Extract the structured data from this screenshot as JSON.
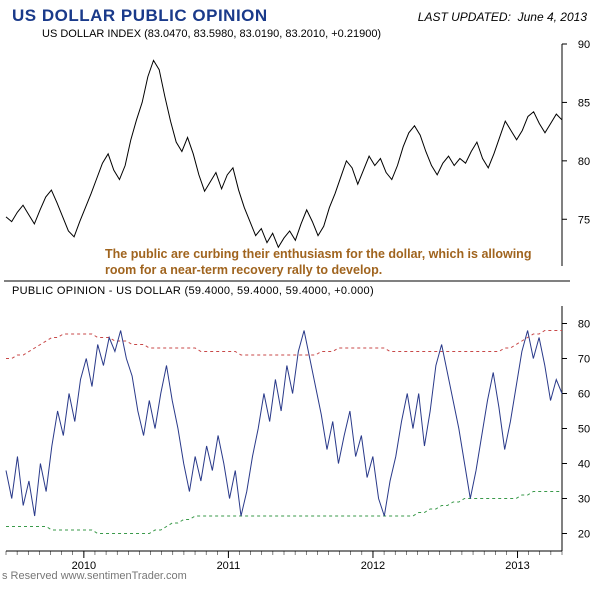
{
  "header": {
    "title": "US DOLLAR PUBLIC OPINION",
    "last_updated_label": "LAST UPDATED:",
    "last_updated_date": "June 4, 2013"
  },
  "top_chart": {
    "subtitle": "US DOLLAR INDEX (83.0470, 83.5980, 83.0190, 83.2010, +0.21900)",
    "ylim": [
      71,
      90
    ],
    "yticks": [
      75,
      80,
      85,
      90
    ],
    "line_color": "#000000",
    "line_width": 1,
    "background": "#ffffff",
    "series": [
      75.2,
      74.8,
      75.6,
      76.2,
      75.4,
      74.6,
      75.8,
      76.9,
      77.5,
      76.4,
      75.2,
      74.0,
      73.5,
      74.8,
      76.0,
      77.2,
      78.5,
      79.8,
      80.6,
      79.2,
      78.4,
      79.6,
      81.8,
      83.5,
      85.0,
      87.2,
      88.6,
      87.8,
      85.5,
      83.4,
      81.6,
      80.8,
      82.0,
      80.6,
      78.8,
      77.4,
      78.2,
      79.0,
      77.6,
      78.8,
      79.4,
      77.5,
      76.0,
      74.8,
      73.6,
      74.2,
      73.0,
      73.8,
      72.6,
      73.4,
      74.0,
      73.2,
      74.6,
      75.8,
      74.8,
      73.6,
      74.4,
      76.0,
      77.2,
      78.6,
      80.0,
      79.4,
      78.0,
      79.2,
      80.4,
      79.6,
      80.2,
      79.0,
      78.4,
      79.6,
      81.2,
      82.4,
      83.0,
      82.2,
      80.8,
      79.6,
      78.8,
      79.8,
      80.4,
      79.6,
      80.2,
      79.8,
      80.8,
      81.6,
      80.2,
      79.4,
      80.6,
      82.0,
      83.4,
      82.6,
      81.8,
      82.6,
      83.8,
      84.2,
      83.2,
      82.4,
      83.2,
      84.0,
      83.5
    ]
  },
  "annotation": {
    "text": "The public are curbing their enthusiasm for the dollar, which is allowing room for a near-term recovery rally to develop.",
    "color": "#a0641e",
    "fontsize": 12.5
  },
  "bottom_chart": {
    "subtitle": "PUBLIC OPINION - US DOLLAR (59.4000, 59.4000, 59.4000, +0.000)",
    "ylim": [
      15,
      85
    ],
    "yticks": [
      20,
      30,
      40,
      50,
      60,
      70,
      80
    ],
    "main_line_color": "#2a3a8a",
    "upper_line_color": "#c84848",
    "lower_line_color": "#3a9a4a",
    "dash": "3,3",
    "line_width": 1,
    "background": "#ffffff",
    "main_series": [
      38,
      30,
      42,
      28,
      35,
      25,
      40,
      32,
      45,
      55,
      48,
      60,
      52,
      64,
      70,
      62,
      74,
      68,
      76,
      72,
      78,
      70,
      65,
      55,
      48,
      58,
      50,
      60,
      68,
      58,
      50,
      40,
      32,
      42,
      35,
      45,
      38,
      48,
      40,
      30,
      38,
      25,
      32,
      42,
      50,
      60,
      52,
      64,
      55,
      68,
      60,
      72,
      78,
      70,
      62,
      54,
      44,
      52,
      40,
      48,
      55,
      42,
      48,
      36,
      42,
      30,
      25,
      35,
      42,
      52,
      60,
      50,
      60,
      45,
      55,
      68,
      74,
      66,
      58,
      50,
      40,
      30,
      38,
      48,
      58,
      66,
      56,
      44,
      52,
      62,
      72,
      78,
      70,
      76,
      68,
      58,
      64,
      60
    ],
    "upper_series": [
      70,
      70,
      71,
      71,
      72,
      73,
      74,
      75,
      76,
      76,
      77,
      77,
      77,
      77,
      77,
      77,
      76,
      76,
      76,
      75,
      75,
      75,
      74,
      74,
      74,
      73,
      73,
      73,
      73,
      73,
      73,
      73,
      73,
      73,
      72,
      72,
      72,
      72,
      72,
      72,
      72,
      71,
      71,
      71,
      71,
      71,
      71,
      71,
      71,
      71,
      71,
      71,
      71,
      71,
      71,
      72,
      72,
      72,
      73,
      73,
      73,
      73,
      73,
      73,
      73,
      73,
      73,
      72,
      72,
      72,
      72,
      72,
      72,
      72,
      72,
      72,
      72,
      72,
      72,
      72,
      72,
      72,
      72,
      72,
      72,
      72,
      72,
      73,
      73,
      74,
      75,
      76,
      77,
      77,
      78,
      78,
      78,
      78
    ],
    "lower_series": [
      22,
      22,
      22,
      22,
      22,
      22,
      22,
      22,
      21,
      21,
      21,
      21,
      21,
      21,
      21,
      21,
      20,
      20,
      20,
      20,
      20,
      20,
      20,
      20,
      20,
      20,
      21,
      21,
      22,
      23,
      23,
      24,
      24,
      25,
      25,
      25,
      25,
      25,
      25,
      25,
      25,
      25,
      25,
      25,
      25,
      25,
      25,
      25,
      25,
      25,
      25,
      25,
      25,
      25,
      25,
      25,
      25,
      25,
      25,
      25,
      25,
      25,
      25,
      25,
      25,
      25,
      25,
      25,
      25,
      25,
      25,
      25,
      26,
      26,
      27,
      27,
      28,
      28,
      29,
      29,
      30,
      30,
      30,
      30,
      30,
      30,
      30,
      30,
      30,
      30,
      31,
      31,
      32,
      32,
      32,
      32,
      32,
      32
    ]
  },
  "x_axis": {
    "labels": [
      "2010",
      "2011",
      "2012",
      "2013"
    ],
    "positions": [
      0.14,
      0.4,
      0.66,
      0.92
    ]
  },
  "footer": {
    "text": "s Reserved   www.sentimenTrader.com"
  }
}
